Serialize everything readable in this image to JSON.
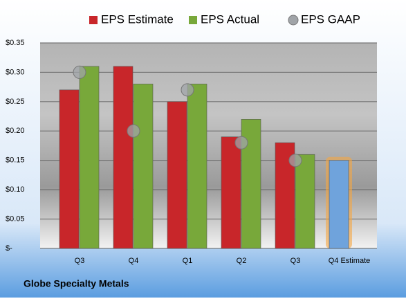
{
  "chart_data": {
    "type": "bar",
    "title": "Globe Specialty Metals",
    "categories": [
      "Q3",
      "Q4",
      "Q1",
      "Q2",
      "Q3",
      "Q4 Estimate"
    ],
    "series": [
      {
        "name": "EPS Estimate",
        "color": "#c8262a",
        "colors": [
          "#c8262a",
          "#c8262a",
          "#c8262a",
          "#c8262a",
          "#c8262a",
          "#6fa3dc"
        ],
        "values": [
          0.27,
          0.31,
          0.25,
          0.19,
          0.18,
          0.15
        ]
      },
      {
        "name": "EPS Actual",
        "color": "#78a83a",
        "values": [
          0.31,
          0.28,
          0.28,
          0.22,
          0.16,
          null
        ]
      },
      {
        "name": "EPS GAAP",
        "color": "#a0a4a8",
        "marker": "circle",
        "values": [
          0.3,
          0.2,
          0.27,
          0.18,
          0.15,
          null
        ]
      }
    ],
    "ylim": [
      0,
      0.35
    ],
    "yticks": [
      {
        "value": 0,
        "label": "$-"
      },
      {
        "value": 0.05,
        "label": "$0.05"
      },
      {
        "value": 0.1,
        "label": "$0.10"
      },
      {
        "value": 0.15,
        "label": "$0.15"
      },
      {
        "value": 0.2,
        "label": "$0.20"
      },
      {
        "value": 0.25,
        "label": "$0.25"
      },
      {
        "value": 0.3,
        "label": "$0.30"
      },
      {
        "value": 0.35,
        "label": "$0.35"
      }
    ],
    "grid": true,
    "legend": "top"
  }
}
